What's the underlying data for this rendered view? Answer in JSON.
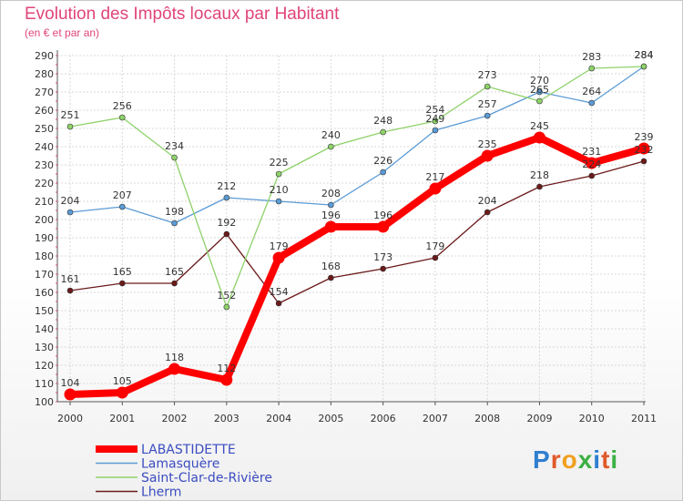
{
  "header": {
    "title": "Evolution des Impôts locaux par Habitant",
    "subtitle": "(en € et par an)"
  },
  "logo": {
    "text": "Proxiti",
    "colors": [
      "#2f7fd0",
      "#e05a2a",
      "#f0a020",
      "#3cb043",
      "#2f7fd0",
      "#e05a2a",
      "#3cb043"
    ]
  },
  "chart_data": {
    "type": "line",
    "title": "Evolution des Impôts locaux par Habitant",
    "subtitle": "(en € et par an)",
    "xlabel": "",
    "ylabel": "",
    "x": [
      "2000",
      "2001",
      "2002",
      "2003",
      "2004",
      "2005",
      "2006",
      "2007",
      "2008",
      "2009",
      "2010",
      "2011"
    ],
    "ylim": [
      100,
      290
    ],
    "yticks": [
      100,
      110,
      120,
      130,
      140,
      150,
      160,
      170,
      180,
      190,
      200,
      210,
      220,
      230,
      240,
      250,
      260,
      270,
      280,
      290
    ],
    "grid": true,
    "legend_position": "bottom-left",
    "series": [
      {
        "name": "Lherm",
        "color": "#6b1a1a",
        "values": [
          161,
          165,
          165,
          192,
          154,
          168,
          173,
          179,
          204,
          218,
          224,
          232
        ]
      },
      {
        "name": "Lamasquère",
        "color": "#5b9bd5",
        "values": [
          204,
          207,
          198,
          212,
          210,
          208,
          226,
          249,
          257,
          270,
          264,
          284
        ]
      },
      {
        "name": "Saint-Clar-de-Rivière",
        "color": "#8fd16a",
        "values": [
          251,
          256,
          234,
          152,
          225,
          240,
          248,
          254,
          273,
          265,
          283,
          284
        ]
      },
      {
        "name": "LABASTIDETTE",
        "color": "#ff0000",
        "values": [
          104,
          105,
          118,
          112,
          179,
          196,
          196,
          217,
          235,
          245,
          231,
          239
        ]
      }
    ],
    "legend": [
      "LABASTIDETTE",
      "Lamasquère",
      "Saint-Clar-de-Rivière",
      "Lherm"
    ]
  }
}
